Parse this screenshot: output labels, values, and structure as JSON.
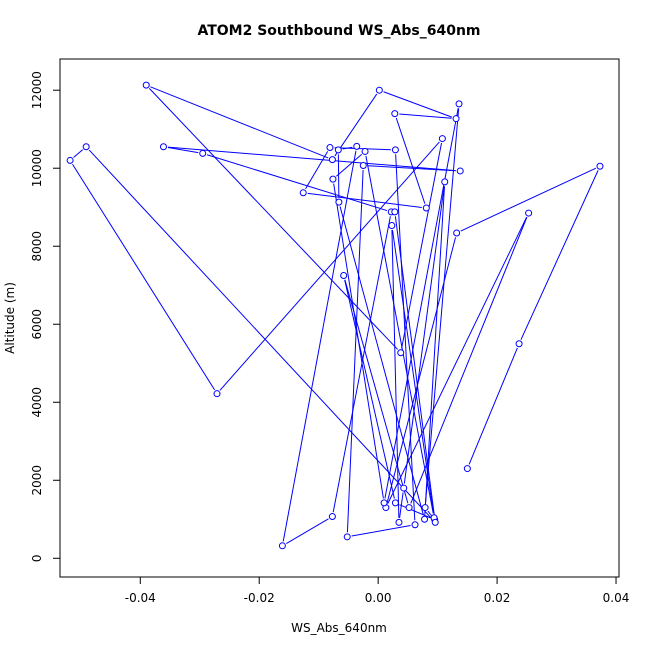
{
  "chart_data": {
    "type": "line",
    "title": "ATOM2 Southbound WS_Abs_640nm",
    "xlabel": "WS_Abs_640nm",
    "ylabel": "Altitude (m)",
    "xlim": [
      -0.0535,
      0.0405
    ],
    "ylim": [
      -480,
      12800
    ],
    "x_ticks": [
      -0.04,
      -0.02,
      0.0,
      0.02,
      0.04
    ],
    "x_tick_labels": [
      "-0.04",
      "-0.02",
      "0.00",
      "0.02",
      "0.04"
    ],
    "y_ticks": [
      0,
      2000,
      4000,
      6000,
      8000,
      10000,
      12000
    ],
    "y_tick_labels": [
      "0",
      "2000",
      "4000",
      "6000",
      "8000",
      "10000",
      "12000"
    ],
    "grid": false,
    "series": [
      {
        "color": "#0000ff",
        "marker": "open-circle",
        "x": [
          0.015,
          0.0237,
          0.0373,
          0.0132,
          0.0013,
          0.0253,
          0.0052,
          -0.0058,
          0.0029,
          0.0095,
          0.0079,
          0.0136,
          0.001,
          -0.0076,
          -0.0022,
          0.0094,
          0.0023,
          0.0035,
          0.0043,
          0.0112,
          0.0078,
          -0.0066,
          -0.0067,
          -0.0036,
          -0.0161,
          -0.0077,
          0.0022,
          -0.0295,
          -0.0361,
          0.0138,
          -0.0025,
          -0.0052,
          0.0062,
          0.0029,
          -0.0081,
          -0.0126,
          0.0081,
          0.0028,
          0.0131,
          0.0002,
          -0.0077,
          -0.039,
          0.0038,
          0.0108,
          -0.0271,
          -0.0518,
          -0.0491,
          0.0096,
          0.0028
        ],
        "y": [
          2300,
          5500,
          10050,
          8340,
          1300,
          8850,
          1300,
          7250,
          1420,
          990,
          1300,
          11650,
          1420,
          9720,
          10430,
          1040,
          8530,
          920,
          1800,
          9650,
          1000,
          9130,
          10470,
          10560,
          320,
          1070,
          8880,
          10380,
          10550,
          9930,
          10070,
          550,
          860,
          10470,
          10530,
          9370,
          8980,
          11400,
          11270,
          12000,
          10220,
          12130,
          5270,
          10760,
          4220,
          10200,
          10550,
          920,
          8880
        ]
      }
    ]
  }
}
